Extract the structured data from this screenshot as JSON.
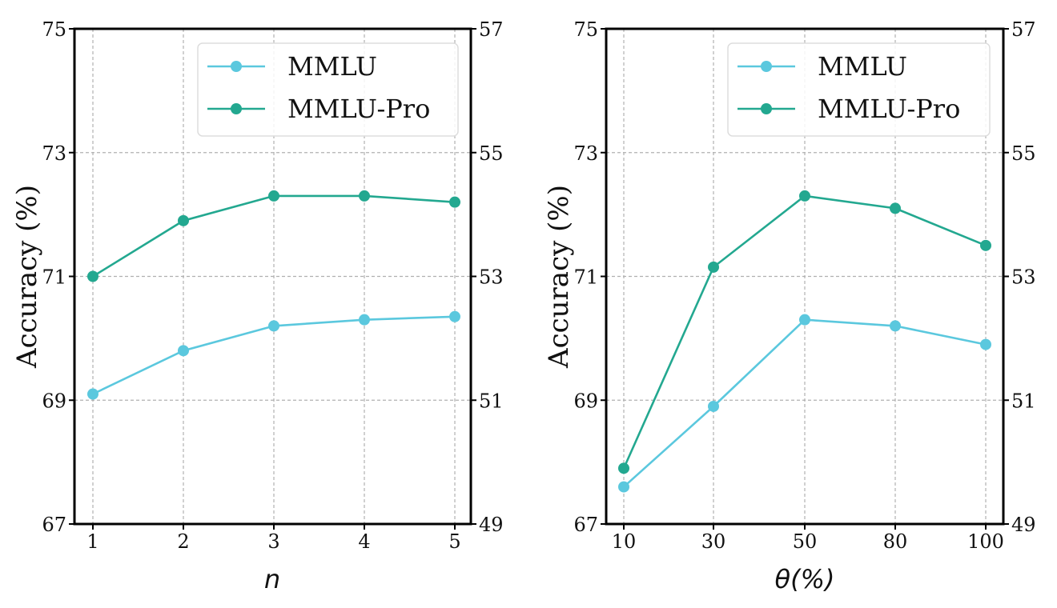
{
  "colors": {
    "mmlu": "#5BC8DE",
    "mmlu_pro": "#23A890",
    "grid": "#b0b0b0",
    "axis": "#000000"
  },
  "chart_data": [
    {
      "type": "line",
      "x": [
        "1",
        "2",
        "3",
        "4",
        "5"
      ],
      "xlabel": "n",
      "ylabel": "Accuracy (%)",
      "ylim": [
        67,
        75
      ],
      "yticks": [
        "67",
        "69",
        "71",
        "73",
        "75"
      ],
      "y2lim": [
        49,
        57
      ],
      "y2ticks": [
        "49",
        "51",
        "53",
        "55",
        "57"
      ],
      "grid": true,
      "legend_position": "top-right",
      "series": [
        {
          "name": "MMLU",
          "axis": "left",
          "values": [
            69.1,
            69.8,
            70.2,
            70.3,
            70.35
          ]
        },
        {
          "name": "MMLU-Pro",
          "axis": "right",
          "values": [
            53.0,
            53.9,
            54.3,
            54.3,
            54.2
          ]
        }
      ]
    },
    {
      "type": "line",
      "x": [
        "10",
        "30",
        "50",
        "80",
        "100"
      ],
      "xlabel": "θ(%)",
      "ylabel": "Accuracy (%)",
      "ylim": [
        67,
        75
      ],
      "yticks": [
        "67",
        "69",
        "71",
        "73",
        "75"
      ],
      "y2lim": [
        49,
        57
      ],
      "y2ticks": [
        "49",
        "51",
        "53",
        "55",
        "57"
      ],
      "grid": true,
      "legend_position": "top-right",
      "series": [
        {
          "name": "MMLU",
          "axis": "left",
          "values": [
            67.6,
            68.9,
            70.3,
            70.2,
            69.9
          ]
        },
        {
          "name": "MMLU-Pro",
          "axis": "right",
          "values": [
            49.9,
            53.15,
            54.3,
            54.1,
            53.5
          ]
        }
      ]
    }
  ]
}
